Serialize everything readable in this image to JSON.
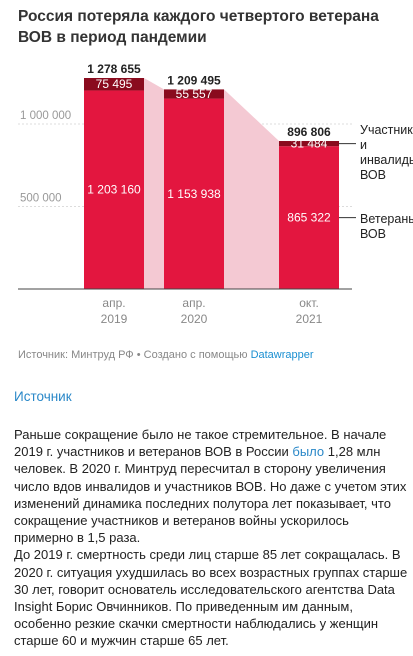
{
  "title": "Россия потеряла каждого четвертого ветерана ВОВ в период пандемии",
  "chart_data": {
    "type": "bar",
    "stacked": true,
    "categories": [
      "апр.\n2019",
      "апр.\n2020",
      "окт.\n2021"
    ],
    "category_lines": [
      [
        "апр.",
        "2019"
      ],
      [
        "апр.",
        "2020"
      ],
      [
        "окт.",
        "2021"
      ]
    ],
    "series": [
      {
        "name": "Ветераны ВОВ",
        "legend": [
          "Ветераны",
          "ВОВ"
        ],
        "values": [
          1203160,
          1153938,
          865322
        ],
        "labels": [
          "1 203 160",
          "1 153 938",
          "865 322"
        ],
        "color": "#e3163f"
      },
      {
        "name": "Участники и инвалиды ВОВ",
        "legend": [
          "Участники",
          "и",
          "инвалиды",
          "ВОВ"
        ],
        "values": [
          75495,
          55557,
          31484
        ],
        "labels": [
          "75 495",
          "55 557",
          "31 484"
        ],
        "color": "#8a0b1e"
      }
    ],
    "totals": [
      1278655,
      1209495,
      896806
    ],
    "total_labels": [
      "1 278 655",
      "1 209 495",
      "896 806"
    ],
    "ylim": [
      0,
      1300000
    ],
    "yticks": [
      500000,
      1000000
    ],
    "ytick_labels": [
      "500 000",
      "1 000 000"
    ],
    "grid": true,
    "connector_color": "#f4c9d3"
  },
  "source": {
    "text": "Источник: Минтруд РФ • Создано с помощью ",
    "tool": "Datawrapper"
  },
  "source_link": "Источник",
  "article": {
    "p1_before": "Раньше сокращение было не такое стремительное. В начале 2019 г. участников и ветеранов ВОВ в России ",
    "p1_link": "было",
    "p1_after": " 1,28 млн человек. В 2020 г. Минтруд пересчитал в сторону увеличения число вдов инвалидов и участников ВОВ. Но даже с учетом этих изменений динамика последних полутора лет показывает, что сокращение участников и ветеранов войны ускорилось примерно в 1,5 раза.",
    "p2": "До 2019 г. смертность среди лиц старше 85 лет сокращалась. В 2020 г. ситуация ухудшилась во всех возрастных группах старше 30 лет, говорит основатель исследовательского агентства Data Insight Борис Овчинников. По приведенным им данным, особенно резкие скачки смертности наблюдались у женщин старше 60 и мужчин старше 65 лет."
  }
}
